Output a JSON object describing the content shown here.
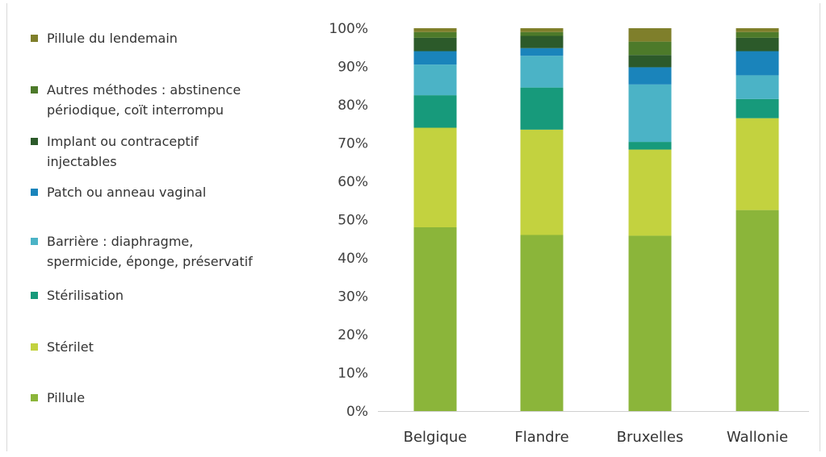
{
  "chart_data": {
    "type": "bar",
    "stacked": true,
    "orientation": "vertical",
    "categories": [
      "Belgique",
      "Flandre",
      "Bruxelles",
      "Wallonie"
    ],
    "ylim": [
      0,
      100
    ],
    "yticks": [
      "0%",
      "10%",
      "20%",
      "30%",
      "40%",
      "50%",
      "60%",
      "70%",
      "80%",
      "90%",
      "100%"
    ],
    "grid": false,
    "legend_position": "left",
    "series": [
      {
        "name": "Pillule",
        "color": "#8bb53a",
        "values": [
          48,
          46,
          45.8,
          52.5
        ]
      },
      {
        "name": "Stérilet",
        "color": "#c3d23f",
        "values": [
          26,
          27.5,
          22.5,
          24
        ]
      },
      {
        "name": "Stérilisation",
        "color": "#179a7b",
        "values": [
          8.5,
          11,
          2,
          5
        ]
      },
      {
        "name": "Barrière : diaphragme, spermicide, éponge, préservatif",
        "color": "#4bb3c6",
        "values": [
          8,
          8.3,
          15,
          6.2
        ]
      },
      {
        "name": "Patch ou anneau vaginal",
        "color": "#1a84bb",
        "values": [
          3.5,
          2,
          4.5,
          6.3
        ]
      },
      {
        "name": "Implant ou contraceptif injectables",
        "color": "#2c5a2a",
        "values": [
          3.5,
          3.2,
          3.2,
          3.5
        ]
      },
      {
        "name": "Autres méthodes : abstinence périodique, coït interrompu",
        "color": "#4d7a2a",
        "values": [
          1.5,
          1,
          3.5,
          1.5
        ]
      },
      {
        "name": "Pillule du lendemain",
        "color": "#7f7f2b",
        "values": [
          1,
          1,
          3.5,
          1
        ]
      }
    ],
    "legend_lines": [
      [
        "Pillule du lendemain"
      ],
      [
        "Autres méthodes : abstinence",
        "périodique, coït interrompu"
      ],
      [
        "Implant ou contraceptif",
        "injectables"
      ],
      [
        "Patch ou anneau vaginal"
      ],
      [
        "Barrière : diaphragme,",
        "spermicide, éponge, préservatif"
      ],
      [
        "Stérilisation"
      ],
      [
        "Stérilet"
      ],
      [
        "Pillule"
      ]
    ],
    "legend_colors": [
      "#7f7f2b",
      "#4d7a2a",
      "#2c5a2a",
      "#1a84bb",
      "#4bb3c6",
      "#179a7b",
      "#c3d23f",
      "#8bb53a"
    ]
  }
}
